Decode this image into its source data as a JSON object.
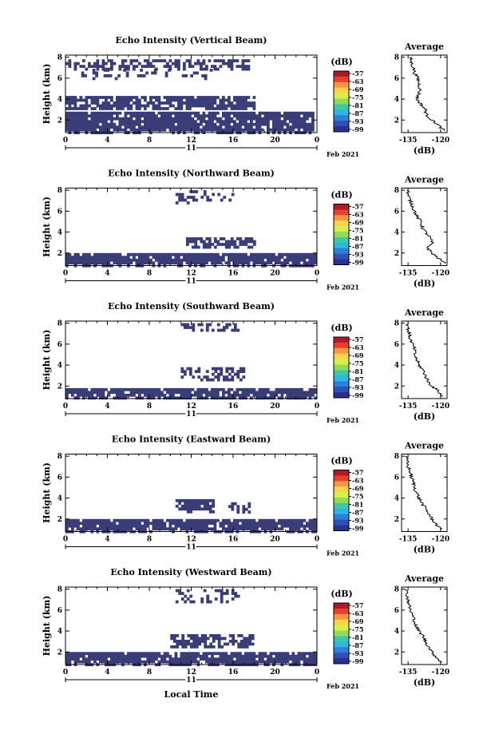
{
  "figure": {
    "x_label": "Local Time",
    "date_label": "Feb 2021",
    "day_label": "11",
    "y_label": "Height (km)",
    "avg_title": "Average",
    "avg_xlabel": "(dB)",
    "colorbar_title": "(dB)",
    "colorbar_ticks": [
      "-57",
      "-63",
      "-69",
      "-75",
      "-81",
      "-87",
      "-93",
      "-99"
    ],
    "colors": {
      "echo": "#3a3d78",
      "background": "#ffffff"
    }
  },
  "chart_data": [
    {
      "type": "heatmap",
      "title": "Echo Intensity (Vertical Beam)",
      "xlabel": "Local Time",
      "ylabel": "Height (km)",
      "xlim": [
        0,
        24
      ],
      "xticks": [
        "0",
        "4",
        "8",
        "12",
        "16",
        "20",
        "0"
      ],
      "ylim": [
        0.8,
        8.2
      ],
      "yticks": [
        "2",
        "4",
        "6",
        "8"
      ],
      "value_range_db": [
        -99,
        -57
      ],
      "echo_regions": [
        {
          "t0": 0,
          "t1": 17.5,
          "h0": 6.8,
          "h1": 7.8,
          "density": 0.55
        },
        {
          "t0": 1.5,
          "t1": 14,
          "h0": 6.0,
          "h1": 6.9,
          "density": 0.2
        },
        {
          "t0": 0,
          "t1": 18,
          "h0": 3.0,
          "h1": 4.3,
          "density": 0.8
        },
        {
          "t0": 0,
          "t1": 23.5,
          "h0": 0.8,
          "h1": 2.8,
          "density": 0.9
        }
      ],
      "average_profile": {
        "xlabel": "(dB)",
        "xlim": [
          -138,
          -117
        ],
        "xticks": [
          "-135",
          "-120"
        ],
        "ylim": [
          0.8,
          8.2
        ],
        "height_km": [
          8.0,
          7.5,
          7.0,
          6.5,
          6.0,
          5.5,
          5.0,
          4.5,
          4.0,
          3.5,
          3.0,
          2.5,
          2.0,
          1.5,
          1.0
        ],
        "db": [
          -134,
          -133.5,
          -132.5,
          -132,
          -130.5,
          -130,
          -129.5,
          -130,
          -131,
          -129,
          -127,
          -126.5,
          -124,
          -121,
          -118.5
        ]
      }
    },
    {
      "type": "heatmap",
      "title": "Echo Intensity (Northward Beam)",
      "xlabel": "Local Time",
      "ylabel": "Height (km)",
      "xlim": [
        0,
        24
      ],
      "xticks": [
        "0",
        "4",
        "8",
        "12",
        "16",
        "20",
        "0"
      ],
      "ylim": [
        0.8,
        8.2
      ],
      "yticks": [
        "2",
        "4",
        "6",
        "8"
      ],
      "value_range_db": [
        -99,
        -57
      ],
      "echo_regions": [
        {
          "t0": 10.5,
          "t1": 16,
          "h0": 6.8,
          "h1": 8.0,
          "density": 0.3
        },
        {
          "t0": 11.5,
          "t1": 18,
          "h0": 2.6,
          "h1": 3.5,
          "density": 0.7
        },
        {
          "t0": 0,
          "t1": 24,
          "h0": 0.8,
          "h1": 2.0,
          "density": 0.9
        }
      ],
      "average_profile": {
        "xlabel": "(dB)",
        "xlim": [
          -138,
          -117
        ],
        "xticks": [
          "-135",
          "-120"
        ],
        "ylim": [
          0.8,
          8.2
        ],
        "height_km": [
          8.0,
          7.5,
          7.0,
          6.5,
          6.0,
          5.5,
          5.0,
          4.5,
          4.0,
          3.5,
          3.0,
          2.5,
          2.0,
          1.5,
          1.0
        ],
        "db": [
          -135,
          -135,
          -134,
          -133,
          -132,
          -131,
          -129,
          -128.5,
          -127,
          -125,
          -124,
          -126,
          -124,
          -121,
          -118
        ]
      }
    },
    {
      "type": "heatmap",
      "title": "Echo Intensity (Southward Beam)",
      "xlabel": "Local Time",
      "ylabel": "Height (km)",
      "xlim": [
        0,
        24
      ],
      "xticks": [
        "0",
        "4",
        "8",
        "12",
        "16",
        "20",
        "0"
      ],
      "ylim": [
        0.8,
        8.2
      ],
      "yticks": [
        "2",
        "4",
        "6",
        "8"
      ],
      "value_range_db": [
        -99,
        -57
      ],
      "echo_regions": [
        {
          "t0": 11,
          "t1": 16.5,
          "h0": 7.2,
          "h1": 8.0,
          "density": 0.45
        },
        {
          "t0": 11,
          "t1": 17,
          "h0": 2.6,
          "h1": 3.8,
          "density": 0.55
        },
        {
          "t0": 0,
          "t1": 24,
          "h0": 0.8,
          "h1": 1.8,
          "density": 0.9
        }
      ],
      "average_profile": {
        "xlabel": "(dB)",
        "xlim": [
          -138,
          -117
        ],
        "xticks": [
          "-135",
          "-120"
        ],
        "ylim": [
          0.8,
          8.2
        ],
        "height_km": [
          8.0,
          7.5,
          7.0,
          6.5,
          6.0,
          5.5,
          5.0,
          4.5,
          4.0,
          3.5,
          3.0,
          2.5,
          2.0,
          1.5,
          1.0
        ],
        "db": [
          -135,
          -135,
          -134.5,
          -134,
          -133,
          -132,
          -132,
          -131,
          -130,
          -128,
          -127,
          -126,
          -124,
          -121,
          -119
        ]
      }
    },
    {
      "type": "heatmap",
      "title": "Echo Intensity (Eastward Beam)",
      "xlabel": "Local Time",
      "ylabel": "Height (km)",
      "xlim": [
        0,
        24
      ],
      "xticks": [
        "0",
        "4",
        "8",
        "12",
        "16",
        "20",
        "0"
      ],
      "ylim": [
        0.8,
        8.2
      ],
      "yticks": [
        "2",
        "4",
        "6",
        "8"
      ],
      "value_range_db": [
        -99,
        -57
      ],
      "echo_regions": [
        {
          "t0": 10.5,
          "t1": 14,
          "h0": 2.8,
          "h1": 3.9,
          "density": 0.85
        },
        {
          "t0": 15,
          "t1": 17.5,
          "h0": 2.7,
          "h1": 3.6,
          "density": 0.4
        },
        {
          "t0": 0,
          "t1": 24,
          "h0": 0.8,
          "h1": 2.0,
          "density": 0.9
        }
      ],
      "average_profile": {
        "xlabel": "(dB)",
        "xlim": [
          -138,
          -117
        ],
        "xticks": [
          "-135",
          "-120"
        ],
        "ylim": [
          0.8,
          8.2
        ],
        "height_km": [
          8.0,
          7.5,
          7.0,
          6.5,
          6.0,
          5.5,
          5.0,
          4.5,
          4.0,
          3.5,
          3.0,
          2.5,
          2.0,
          1.5,
          1.0
        ],
        "db": [
          -136,
          -135.5,
          -135,
          -134,
          -133.5,
          -132.5,
          -132,
          -131,
          -130,
          -128.5,
          -127,
          -125.5,
          -124,
          -122,
          -120
        ]
      }
    },
    {
      "type": "heatmap",
      "title": "Echo Intensity (Westward Beam)",
      "xlabel": "Local Time",
      "ylabel": "Height (km)",
      "xlim": [
        0,
        24
      ],
      "xticks": [
        "0",
        "4",
        "8",
        "12",
        "16",
        "20",
        "0"
      ],
      "ylim": [
        0.8,
        8.2
      ],
      "yticks": [
        "2",
        "4",
        "6",
        "8"
      ],
      "value_range_db": [
        -99,
        -57
      ],
      "echo_regions": [
        {
          "t0": 10.5,
          "t1": 16.5,
          "h0": 6.8,
          "h1": 8.0,
          "density": 0.4
        },
        {
          "t0": 10,
          "t1": 18,
          "h0": 2.4,
          "h1": 3.7,
          "density": 0.65
        },
        {
          "t0": 0,
          "t1": 24,
          "h0": 0.8,
          "h1": 2.0,
          "density": 0.9
        }
      ],
      "average_profile": {
        "xlabel": "(dB)",
        "xlim": [
          -138,
          -117
        ],
        "xticks": [
          "-135",
          "-120"
        ],
        "ylim": [
          0.8,
          8.2
        ],
        "height_km": [
          8.0,
          7.5,
          7.0,
          6.5,
          6.0,
          5.5,
          5.0,
          4.5,
          4.0,
          3.5,
          3.0,
          2.5,
          2.0,
          1.5,
          1.0
        ],
        "db": [
          -136,
          -135.5,
          -135,
          -134.5,
          -134,
          -133,
          -132,
          -131.5,
          -130,
          -128,
          -127,
          -125.5,
          -124,
          -122,
          -119.5
        ]
      }
    }
  ]
}
